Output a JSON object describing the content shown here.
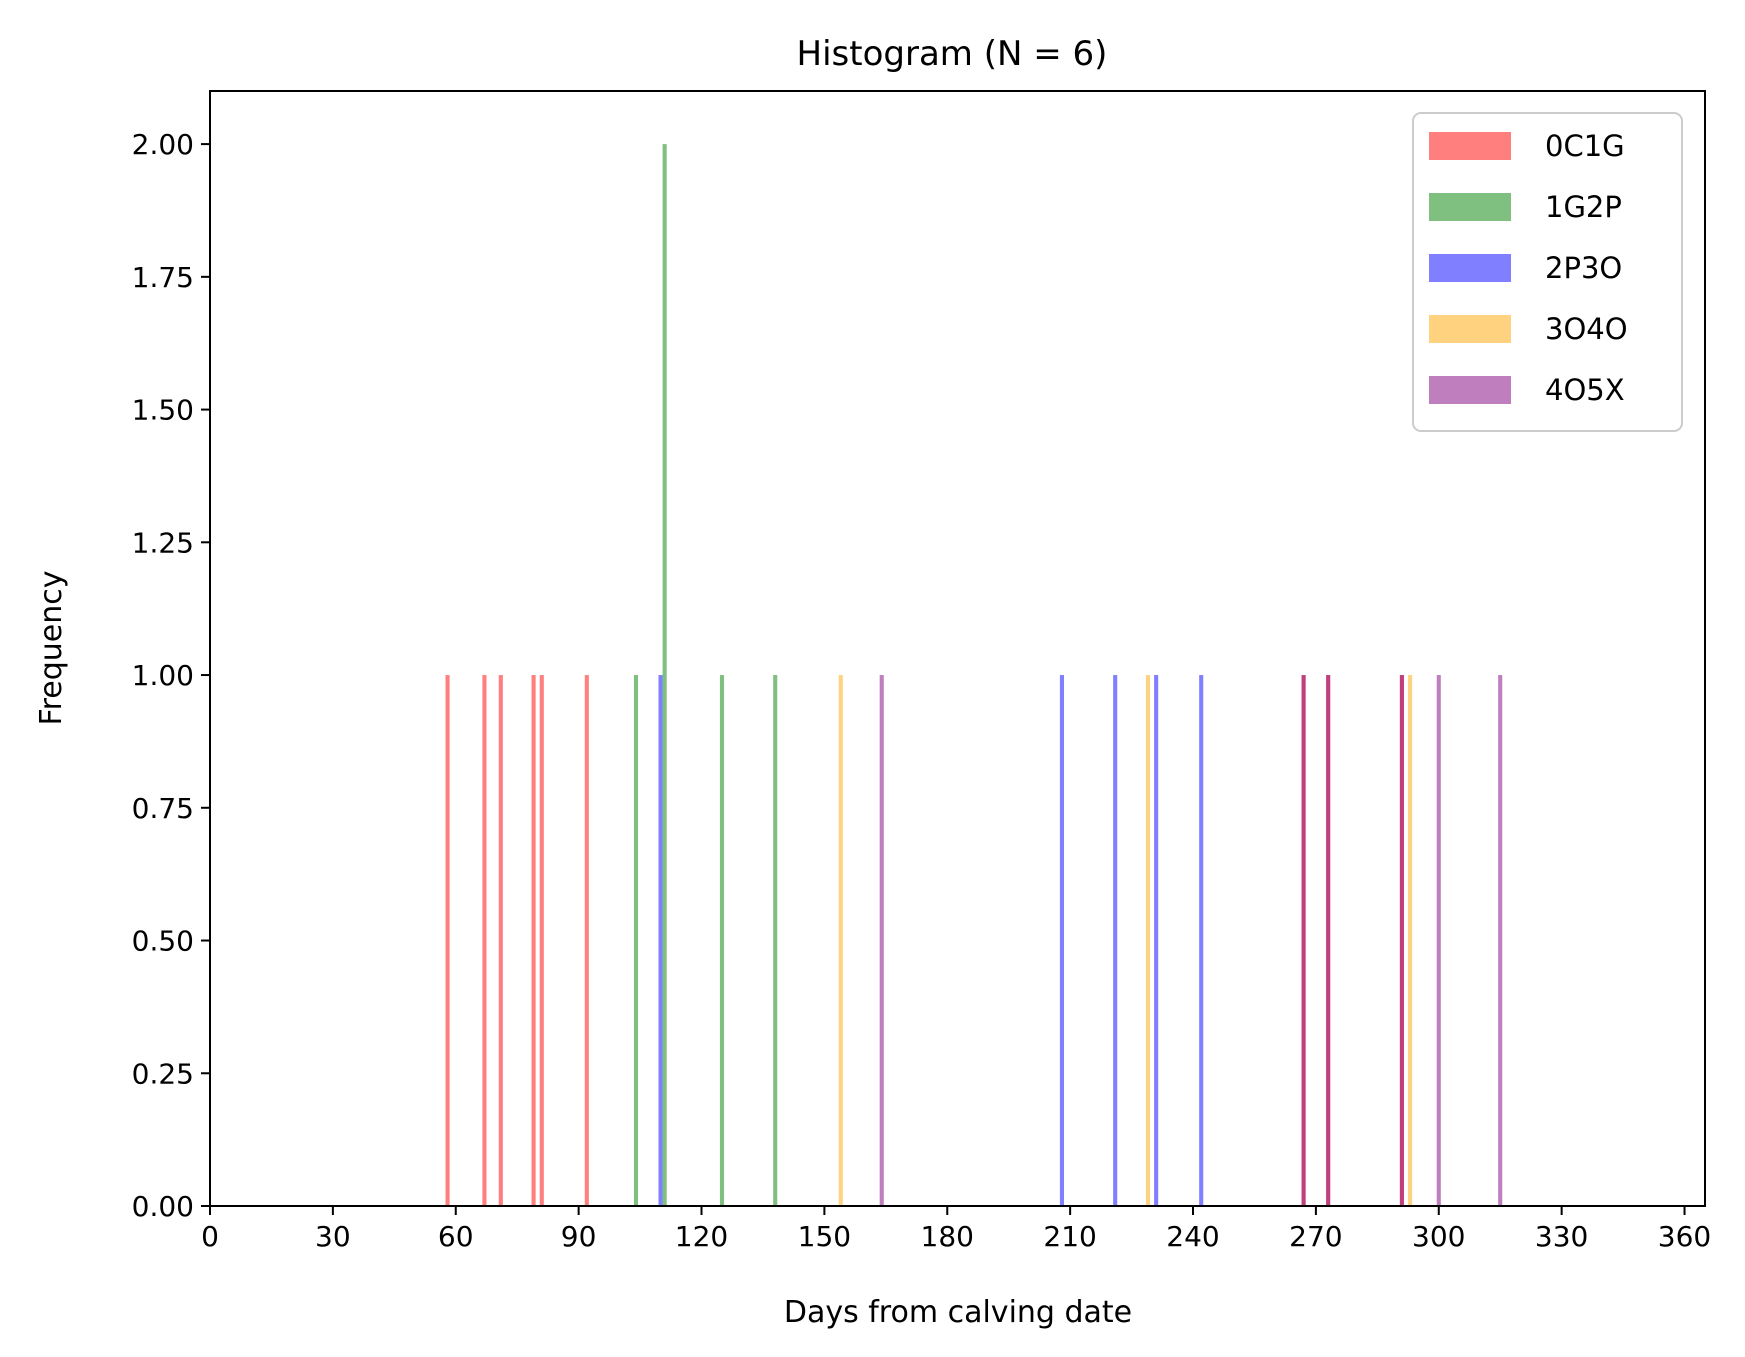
{
  "chart_data": {
    "type": "bar",
    "title": "Histogram (N = 6)",
    "xlabel": "Days from calving date",
    "ylabel": "Frequency",
    "xlim": [
      0,
      365
    ],
    "ylim": [
      0,
      2.1
    ],
    "xticks": [
      0,
      30,
      60,
      90,
      120,
      150,
      180,
      210,
      240,
      270,
      300,
      330,
      360
    ],
    "yticks": [
      0.0,
      0.25,
      0.5,
      0.75,
      1.0,
      1.25,
      1.5,
      1.75,
      2.0
    ],
    "ytick_labels": [
      "0.00",
      "0.25",
      "0.50",
      "0.75",
      "1.00",
      "1.25",
      "1.50",
      "1.75",
      "2.00"
    ],
    "grid": false,
    "legend_position": "top-right",
    "bin_width_days": 1,
    "series": [
      {
        "name": "0C1G",
        "color": "#ff0000",
        "bars": [
          {
            "x": 58,
            "y": 1
          },
          {
            "x": 67,
            "y": 1
          },
          {
            "x": 71,
            "y": 1
          },
          {
            "x": 79,
            "y": 1
          },
          {
            "x": 81,
            "y": 1
          },
          {
            "x": 92,
            "y": 1
          },
          {
            "x": 267,
            "y": 1
          },
          {
            "x": 273,
            "y": 1
          },
          {
            "x": 291,
            "y": 1
          }
        ]
      },
      {
        "name": "1G2P",
        "color": "#008000",
        "bars": [
          {
            "x": 104,
            "y": 1
          },
          {
            "x": 111,
            "y": 2
          },
          {
            "x": 125,
            "y": 1
          },
          {
            "x": 138,
            "y": 1
          }
        ]
      },
      {
        "name": "2P3O",
        "color": "#0000ff",
        "bars": [
          {
            "x": 110,
            "y": 1
          },
          {
            "x": 208,
            "y": 1
          },
          {
            "x": 221,
            "y": 1
          },
          {
            "x": 231,
            "y": 1
          },
          {
            "x": 242,
            "y": 1
          }
        ]
      },
      {
        "name": "3O4O",
        "color": "#ffa500",
        "bars": [
          {
            "x": 154,
            "y": 1
          },
          {
            "x": 229,
            "y": 1
          },
          {
            "x": 293,
            "y": 1
          }
        ]
      },
      {
        "name": "4O5X",
        "color": "#800080",
        "bars": [
          {
            "x": 164,
            "y": 1
          },
          {
            "x": 267,
            "y": 1
          },
          {
            "x": 273,
            "y": 1
          },
          {
            "x": 291,
            "y": 1
          },
          {
            "x": 300,
            "y": 1
          },
          {
            "x": 315,
            "y": 1
          }
        ]
      }
    ]
  }
}
